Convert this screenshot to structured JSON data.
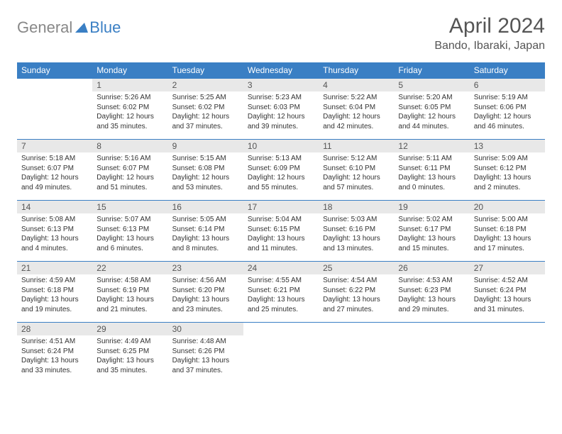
{
  "logo": {
    "part1": "General",
    "part2": "Blue"
  },
  "title": "April 2024",
  "location": "Bando, Ibaraki, Japan",
  "colors": {
    "header_bg": "#3a7fc4",
    "header_text": "#ffffff",
    "daynum_bg": "#e8e8e8",
    "border": "#3a7fc4",
    "logo_gray": "#888888",
    "logo_blue": "#3a7fc4",
    "text": "#333333",
    "title_color": "#555555"
  },
  "weekdays": [
    "Sunday",
    "Monday",
    "Tuesday",
    "Wednesday",
    "Thursday",
    "Friday",
    "Saturday"
  ],
  "weeks": [
    [
      null,
      {
        "d": "1",
        "sr": "5:26 AM",
        "ss": "6:02 PM",
        "dl": "12 hours and 35 minutes."
      },
      {
        "d": "2",
        "sr": "5:25 AM",
        "ss": "6:02 PM",
        "dl": "12 hours and 37 minutes."
      },
      {
        "d": "3",
        "sr": "5:23 AM",
        "ss": "6:03 PM",
        "dl": "12 hours and 39 minutes."
      },
      {
        "d": "4",
        "sr": "5:22 AM",
        "ss": "6:04 PM",
        "dl": "12 hours and 42 minutes."
      },
      {
        "d": "5",
        "sr": "5:20 AM",
        "ss": "6:05 PM",
        "dl": "12 hours and 44 minutes."
      },
      {
        "d": "6",
        "sr": "5:19 AM",
        "ss": "6:06 PM",
        "dl": "12 hours and 46 minutes."
      }
    ],
    [
      {
        "d": "7",
        "sr": "5:18 AM",
        "ss": "6:07 PM",
        "dl": "12 hours and 49 minutes."
      },
      {
        "d": "8",
        "sr": "5:16 AM",
        "ss": "6:07 PM",
        "dl": "12 hours and 51 minutes."
      },
      {
        "d": "9",
        "sr": "5:15 AM",
        "ss": "6:08 PM",
        "dl": "12 hours and 53 minutes."
      },
      {
        "d": "10",
        "sr": "5:13 AM",
        "ss": "6:09 PM",
        "dl": "12 hours and 55 minutes."
      },
      {
        "d": "11",
        "sr": "5:12 AM",
        "ss": "6:10 PM",
        "dl": "12 hours and 57 minutes."
      },
      {
        "d": "12",
        "sr": "5:11 AM",
        "ss": "6:11 PM",
        "dl": "13 hours and 0 minutes."
      },
      {
        "d": "13",
        "sr": "5:09 AM",
        "ss": "6:12 PM",
        "dl": "13 hours and 2 minutes."
      }
    ],
    [
      {
        "d": "14",
        "sr": "5:08 AM",
        "ss": "6:13 PM",
        "dl": "13 hours and 4 minutes."
      },
      {
        "d": "15",
        "sr": "5:07 AM",
        "ss": "6:13 PM",
        "dl": "13 hours and 6 minutes."
      },
      {
        "d": "16",
        "sr": "5:05 AM",
        "ss": "6:14 PM",
        "dl": "13 hours and 8 minutes."
      },
      {
        "d": "17",
        "sr": "5:04 AM",
        "ss": "6:15 PM",
        "dl": "13 hours and 11 minutes."
      },
      {
        "d": "18",
        "sr": "5:03 AM",
        "ss": "6:16 PM",
        "dl": "13 hours and 13 minutes."
      },
      {
        "d": "19",
        "sr": "5:02 AM",
        "ss": "6:17 PM",
        "dl": "13 hours and 15 minutes."
      },
      {
        "d": "20",
        "sr": "5:00 AM",
        "ss": "6:18 PM",
        "dl": "13 hours and 17 minutes."
      }
    ],
    [
      {
        "d": "21",
        "sr": "4:59 AM",
        "ss": "6:18 PM",
        "dl": "13 hours and 19 minutes."
      },
      {
        "d": "22",
        "sr": "4:58 AM",
        "ss": "6:19 PM",
        "dl": "13 hours and 21 minutes."
      },
      {
        "d": "23",
        "sr": "4:56 AM",
        "ss": "6:20 PM",
        "dl": "13 hours and 23 minutes."
      },
      {
        "d": "24",
        "sr": "4:55 AM",
        "ss": "6:21 PM",
        "dl": "13 hours and 25 minutes."
      },
      {
        "d": "25",
        "sr": "4:54 AM",
        "ss": "6:22 PM",
        "dl": "13 hours and 27 minutes."
      },
      {
        "d": "26",
        "sr": "4:53 AM",
        "ss": "6:23 PM",
        "dl": "13 hours and 29 minutes."
      },
      {
        "d": "27",
        "sr": "4:52 AM",
        "ss": "6:24 PM",
        "dl": "13 hours and 31 minutes."
      }
    ],
    [
      {
        "d": "28",
        "sr": "4:51 AM",
        "ss": "6:24 PM",
        "dl": "13 hours and 33 minutes."
      },
      {
        "d": "29",
        "sr": "4:49 AM",
        "ss": "6:25 PM",
        "dl": "13 hours and 35 minutes."
      },
      {
        "d": "30",
        "sr": "4:48 AM",
        "ss": "6:26 PM",
        "dl": "13 hours and 37 minutes."
      },
      null,
      null,
      null,
      null
    ]
  ],
  "labels": {
    "sunrise": "Sunrise:",
    "sunset": "Sunset:",
    "daylight": "Daylight:"
  }
}
